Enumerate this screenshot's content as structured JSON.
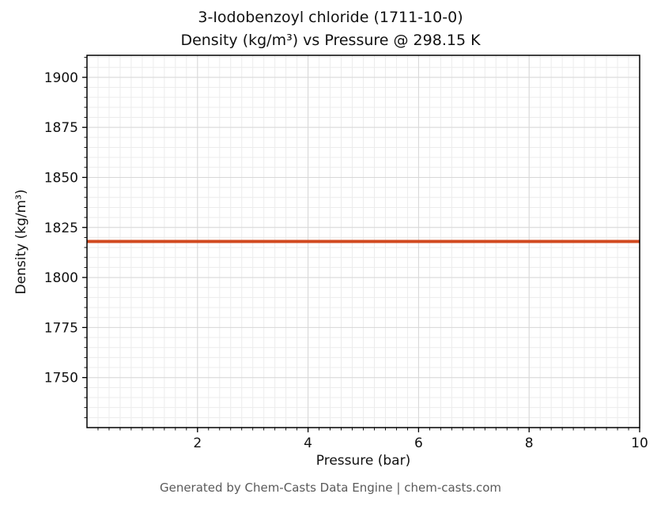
{
  "title": {
    "line1": "3-Iodobenzoyl chloride (1711-10-0)",
    "line2": "Density (kg/m³) vs Pressure @ 298.15 K"
  },
  "footer": "Generated by Chem-Casts Data Engine | chem-casts.com",
  "colors": {
    "line": "#d1491f",
    "grid_minor": "#ececec",
    "grid_major": "#d8d8d8",
    "axis": "#000000",
    "tick_text": "#111111",
    "footer_text": "#5a5a5a"
  },
  "chart_data": {
    "type": "line",
    "title": "3-Iodobenzoyl chloride (1711-10-0)\nDensity (kg/m³) vs Pressure @ 298.15 K",
    "xlabel": "Pressure (bar)",
    "ylabel": "Density (kg/m³)",
    "xlim": [
      0,
      10
    ],
    "ylim": [
      1725,
      1911
    ],
    "xticks": [
      2,
      4,
      6,
      8,
      10
    ],
    "yticks": [
      1750,
      1775,
      1800,
      1825,
      1850,
      1875,
      1900
    ],
    "x_minor_step": 0.2,
    "y_minor_step": 5,
    "grid": true,
    "legend": false,
    "series": [
      {
        "name": "Density",
        "color": "#d1491f",
        "x": [
          0,
          10
        ],
        "y": [
          1818,
          1818
        ]
      }
    ]
  }
}
